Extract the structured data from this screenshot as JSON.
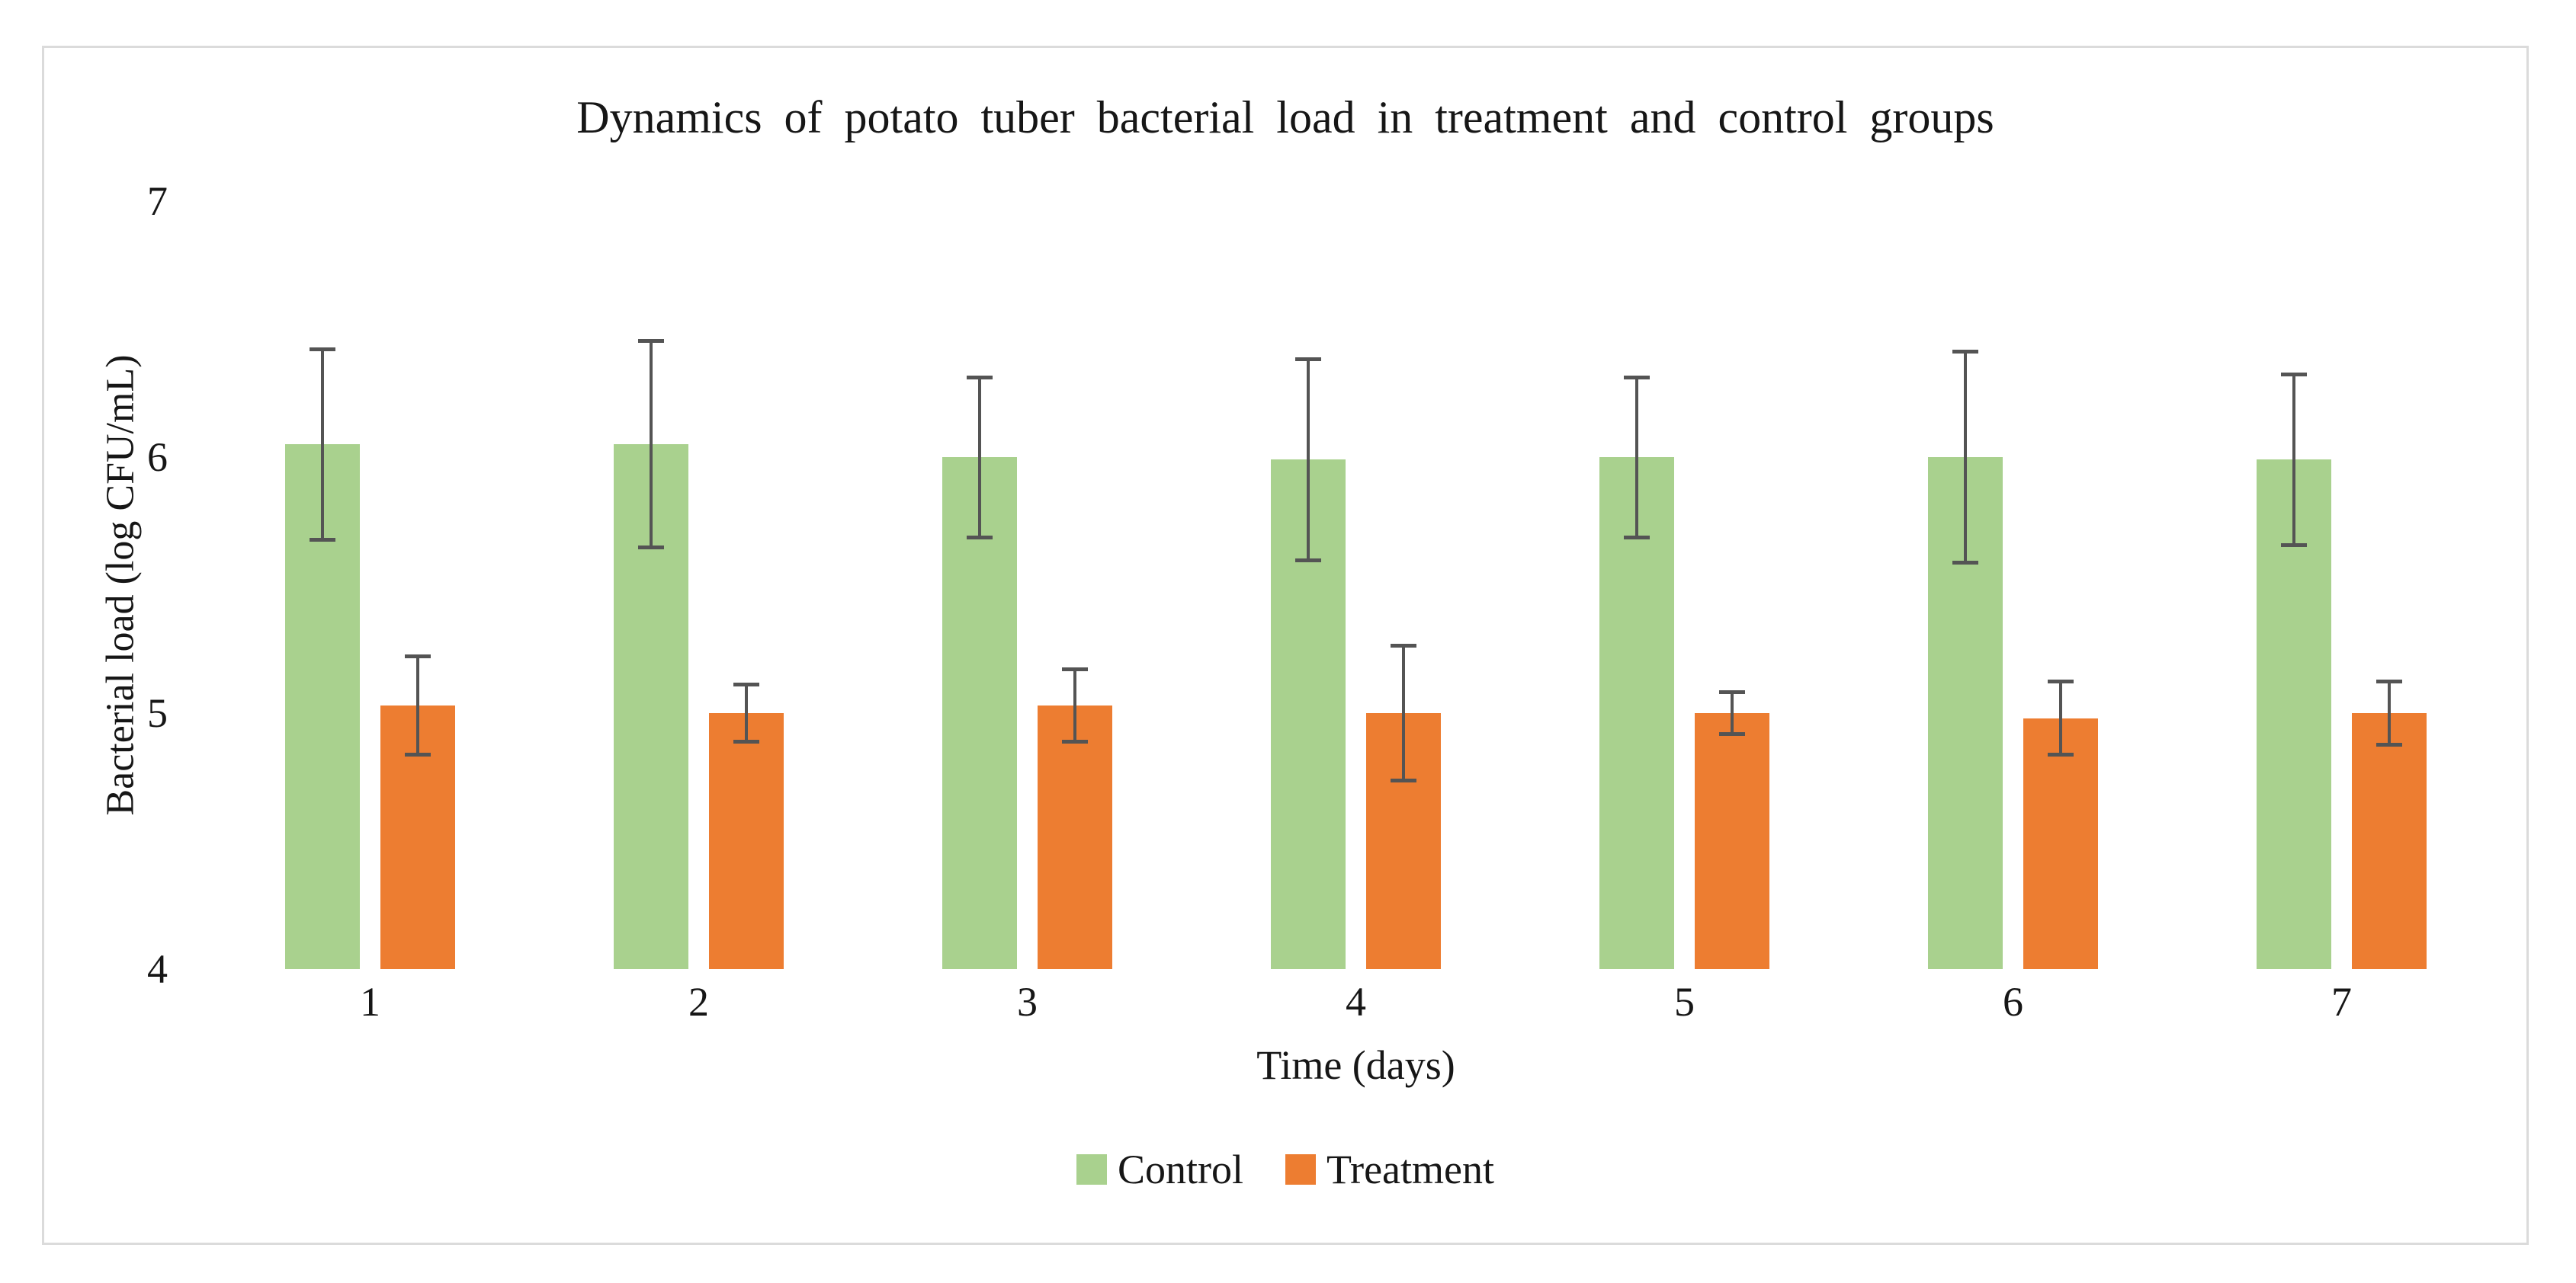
{
  "chart_data": {
    "type": "bar",
    "title": "Dynamics of potato tuber bacterial load in treatment and control groups",
    "xlabel": "Time (days)",
    "ylabel": "Bacterial load (log CFU/mL)",
    "categories": [
      "1",
      "2",
      "3",
      "4",
      "5",
      "6",
      "7"
    ],
    "series": [
      {
        "name": "Control",
        "color": "#A9D18E",
        "values": [
          6.05,
          6.05,
          6.0,
          5.99,
          6.0,
          6.0,
          5.99
        ],
        "errors": [
          0.38,
          0.41,
          0.32,
          0.4,
          0.32,
          0.42,
          0.34
        ]
      },
      {
        "name": "Treatment",
        "color": "#ED7D31",
        "values": [
          5.03,
          5.0,
          5.03,
          5.0,
          5.0,
          4.98,
          5.0
        ],
        "errors": [
          0.2,
          0.12,
          0.15,
          0.27,
          0.09,
          0.15,
          0.13
        ]
      }
    ],
    "ylim": [
      4,
      7
    ],
    "yticks": [
      4,
      5,
      6,
      7
    ],
    "grid": false,
    "axis_lines": false,
    "legend_position": "bottom-center",
    "error_bar_color": "#545454",
    "frame_border_color": "#DBDBDB",
    "background": "#FFFFFF"
  }
}
